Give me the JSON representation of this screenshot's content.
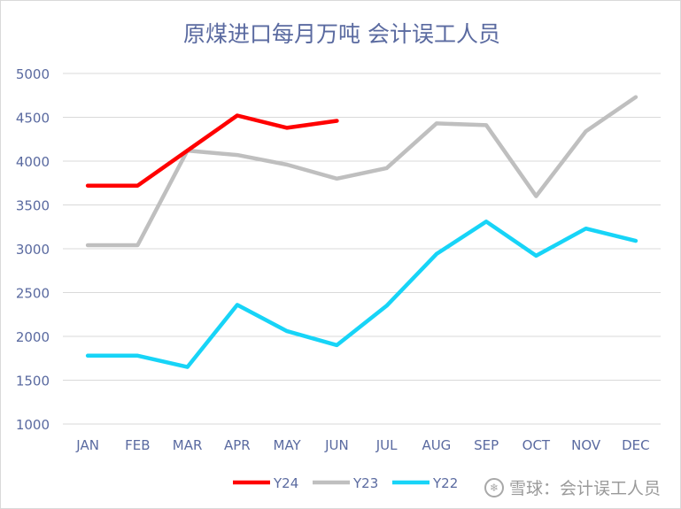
{
  "chart_data": {
    "type": "line",
    "title": "原煤进口每月万吨  会计误工人员",
    "categories": [
      "JAN",
      "FEB",
      "MAR",
      "APR",
      "MAY",
      "JUN",
      "JUL",
      "AUG",
      "SEP",
      "OCT",
      "NOV",
      "DEC"
    ],
    "ylim": [
      1000,
      5000
    ],
    "yticks": [
      1000,
      1500,
      2000,
      2500,
      3000,
      3500,
      4000,
      4500,
      5000
    ],
    "grid": true,
    "legend_position": "bottom",
    "series": [
      {
        "name": "Y24",
        "color": "#ff0000",
        "values": [
          3720,
          3720,
          4120,
          4520,
          4380,
          4460,
          null,
          null,
          null,
          null,
          null,
          null
        ]
      },
      {
        "name": "Y23",
        "color": "#bfbfbf",
        "values": [
          3040,
          3040,
          4120,
          4070,
          3960,
          3800,
          3920,
          4430,
          4410,
          3600,
          4340,
          4730
        ]
      },
      {
        "name": "Y22",
        "color": "#17d4f7",
        "values": [
          1780,
          1780,
          1650,
          2360,
          2060,
          1900,
          2350,
          2940,
          3310,
          2920,
          3230,
          3090
        ]
      }
    ]
  },
  "watermark": {
    "text": "雪球：会计误工人员",
    "icon": "snowball-logo-icon"
  }
}
